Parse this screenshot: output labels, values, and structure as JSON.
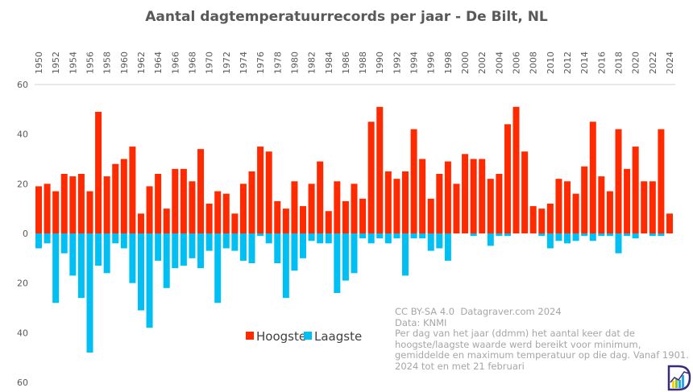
{
  "chart_data": {
    "type": "bar",
    "title": "Aantal dagtemperatuurrecords per jaar - De Bilt, NL",
    "xlabel": "",
    "ylabel": "",
    "ylim": [
      -60,
      60
    ],
    "yticks": [
      60,
      40,
      20,
      0,
      20,
      40,
      60
    ],
    "grid": false,
    "legend_position": "center-bottom",
    "categories": [
      1950,
      1951,
      1952,
      1953,
      1954,
      1955,
      1956,
      1957,
      1958,
      1959,
      1960,
      1961,
      1962,
      1963,
      1964,
      1965,
      1966,
      1967,
      1968,
      1969,
      1970,
      1971,
      1972,
      1973,
      1974,
      1975,
      1976,
      1977,
      1978,
      1979,
      1980,
      1981,
      1982,
      1983,
      1984,
      1985,
      1986,
      1987,
      1988,
      1989,
      1990,
      1991,
      1992,
      1993,
      1994,
      1995,
      1996,
      1997,
      1998,
      1999,
      2000,
      2001,
      2002,
      2003,
      2004,
      2005,
      2006,
      2007,
      2008,
      2009,
      2010,
      2011,
      2012,
      2013,
      2014,
      2015,
      2016,
      2017,
      2018,
      2019,
      2020,
      2021,
      2022,
      2023,
      2024
    ],
    "series": [
      {
        "name": "Hoogste",
        "color": "#ff2a00",
        "values": [
          19,
          20,
          17,
          24,
          23,
          24,
          17,
          49,
          23,
          28,
          30,
          35,
          8,
          19,
          24,
          10,
          26,
          26,
          21,
          34,
          12,
          17,
          16,
          8,
          20,
          25,
          35,
          33,
          13,
          10,
          21,
          11,
          20,
          29,
          9,
          21,
          13,
          20,
          14,
          45,
          51,
          25,
          22,
          25,
          42,
          30,
          14,
          24,
          29,
          20,
          32,
          30,
          30,
          22,
          24,
          44,
          51,
          33,
          11,
          10,
          12,
          22,
          21,
          16,
          27,
          45,
          23,
          17,
          42,
          26,
          35,
          21,
          21,
          42,
          8
        ]
      },
      {
        "name": "Laagste",
        "color": "#00bff3",
        "values": [
          6,
          4,
          28,
          8,
          17,
          26,
          48,
          13,
          16,
          4,
          6,
          20,
          31,
          38,
          11,
          22,
          14,
          13,
          10,
          14,
          7,
          28,
          6,
          7,
          11,
          12,
          1,
          4,
          12,
          26,
          15,
          10,
          3,
          4,
          4,
          24,
          19,
          16,
          2,
          4,
          2,
          4,
          2,
          17,
          2,
          2,
          7,
          6,
          11,
          0,
          0,
          1,
          0,
          5,
          1,
          1,
          0,
          0,
          0,
          1,
          6,
          3,
          4,
          3,
          1,
          3,
          1,
          1,
          8,
          1,
          2,
          0,
          1,
          1,
          0
        ]
      }
    ],
    "annotation": [
      "CC BY-SA 4.0  Datagraver.com 2024",
      "Data: KNMI",
      "Per dag van het jaar (ddmm) het aantal keer dat de",
      "hoogste/laagste waarde werd bereikt voor minimum,",
      "gemiddelde en maximum temperatuur op die dag. Vanaf 1901.",
      "2024 tot en met 21 februari"
    ]
  },
  "logo": "Datagraver"
}
